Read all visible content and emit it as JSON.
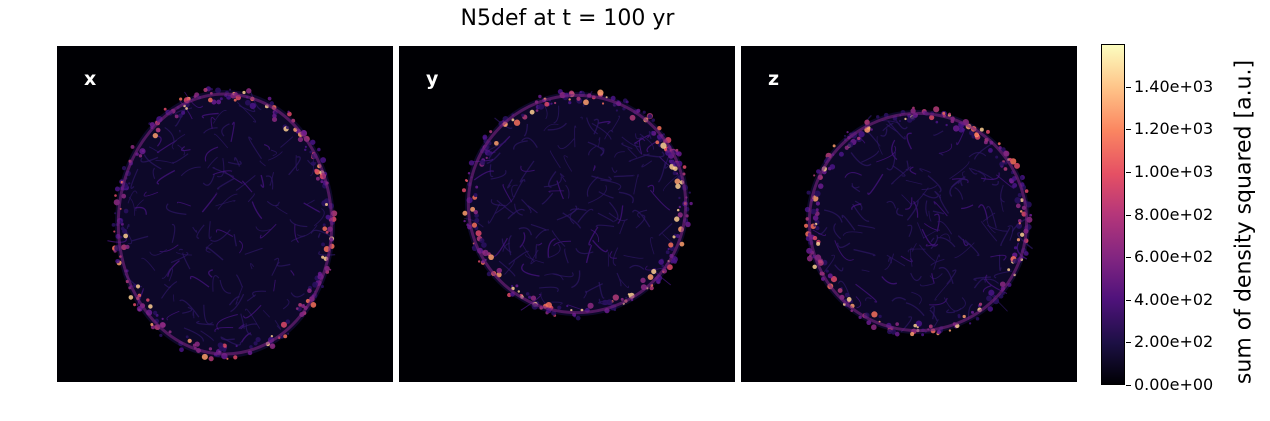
{
  "title": "N5def at t = 100 yr",
  "panels": [
    {
      "label": "x"
    },
    {
      "label": "y"
    },
    {
      "label": "z"
    }
  ],
  "chart_data": {
    "type": "heatmap",
    "title": "N5def at t = 100 yr",
    "panels": [
      "x",
      "y",
      "z"
    ],
    "colormap": "magma",
    "colorbar": {
      "label": "sum of density squared [a.u.]",
      "range": [
        0,
        1600
      ],
      "ticks": [
        0,
        200,
        400,
        600,
        800,
        1000,
        1200,
        1400
      ],
      "tick_labels": [
        "0.00e+00",
        "2.00e+02",
        "4.00e+02",
        "6.00e+02",
        "8.00e+02",
        "1.00e+03",
        "1.20e+03",
        "1.40e+03"
      ]
    }
  }
}
